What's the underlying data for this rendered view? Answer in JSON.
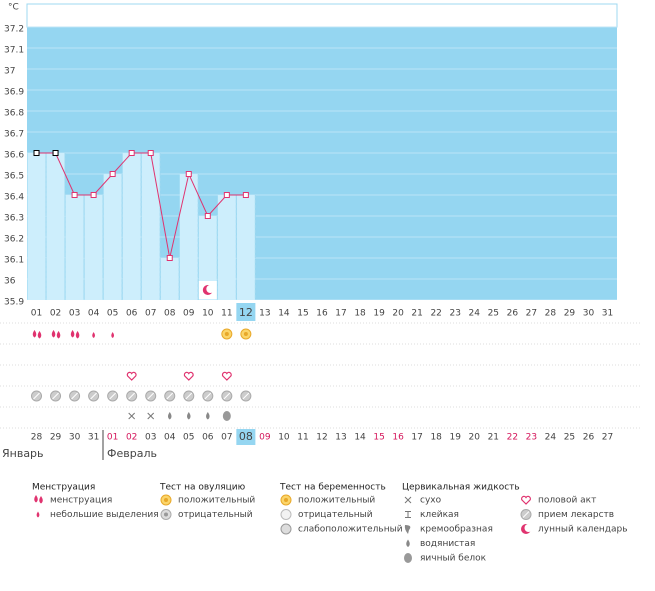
{
  "chart_data": {
    "type": "line",
    "y_unit": "°C",
    "ylim": [
      35.9,
      37.2
    ],
    "yticks": [
      35.9,
      36,
      36.1,
      36.2,
      36.3,
      36.4,
      36.5,
      36.6,
      36.7,
      36.8,
      36.9,
      37,
      37.1,
      37.2
    ],
    "categories": [
      "01",
      "02",
      "03",
      "04",
      "05",
      "06",
      "07",
      "08",
      "09",
      "10",
      "11",
      "12",
      "13",
      "14",
      "15",
      "16",
      "17",
      "18",
      "19",
      "20",
      "21",
      "22",
      "23",
      "24",
      "25",
      "26",
      "27",
      "28",
      "29",
      "30",
      "31"
    ],
    "series": [
      {
        "color": "#e0336f",
        "values": [
          36.6,
          36.6,
          36.4,
          36.4,
          36.5,
          36.6,
          36.6,
          36.1,
          36.5,
          36.3,
          36.4,
          36.4,
          null,
          null,
          null,
          null,
          null,
          null,
          null,
          null,
          null,
          null,
          null,
          null,
          null,
          null,
          null,
          null,
          null,
          null,
          null
        ]
      }
    ],
    "highlight_index": 11,
    "cycle_dates": [
      "28",
      "29",
      "30",
      "31",
      "01",
      "02",
      "03",
      "04",
      "05",
      "06",
      "07",
      "08",
      "09",
      "10",
      "11",
      "12",
      "13",
      "14",
      "15",
      "16",
      "17",
      "18",
      "19",
      "20",
      "21",
      "22",
      "23",
      "24",
      "25",
      "26",
      "27"
    ],
    "months": [
      "Январь",
      "Февраль"
    ],
    "grid": true,
    "legend": [
      {
        "title": "Менструация",
        "items": [
          "менструация",
          "небольшие выделения"
        ]
      },
      {
        "title": "Тест на овуляцию",
        "items": [
          "положительный",
          "отрицательный"
        ]
      },
      {
        "title": "Тест на беременность",
        "items": [
          "положительный",
          "отрицательный",
          "слабоположительный"
        ]
      },
      {
        "title": "Цервикальная жидкость",
        "items": [
          "сухо",
          "клейкая",
          "кремообразная",
          "водянистая",
          "яичный белок"
        ]
      },
      {
        "items": [
          "половой акт",
          "прием лекарств",
          "лунный календарь"
        ]
      }
    ]
  }
}
